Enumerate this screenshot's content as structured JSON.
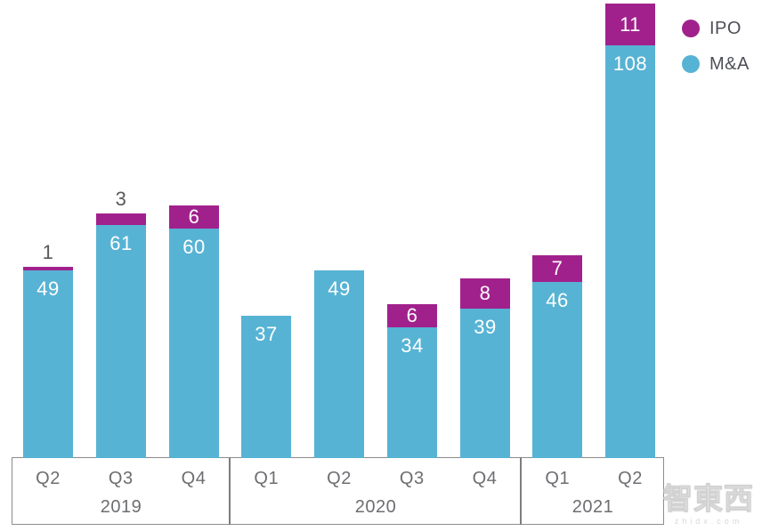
{
  "chart_data": {
    "type": "bar",
    "stacked": true,
    "grid": false,
    "legend_position": "top-right",
    "ylim": [
      0,
      119
    ],
    "quarters": [
      "Q2",
      "Q3",
      "Q4",
      "Q1",
      "Q2",
      "Q3",
      "Q4",
      "Q1",
      "Q2"
    ],
    "year_groups": [
      {
        "label": "2019",
        "count": 3
      },
      {
        "label": "2020",
        "count": 4
      },
      {
        "label": "2021",
        "count": 2
      }
    ],
    "series": [
      {
        "name": "M&A",
        "color": "#57B3D4",
        "values": [
          49,
          61,
          60,
          37,
          49,
          34,
          39,
          46,
          108
        ]
      },
      {
        "name": "IPO",
        "color": "#A1218C",
        "values": [
          1,
          3,
          6,
          0,
          0,
          6,
          8,
          7,
          11
        ]
      }
    ],
    "ipo_label_position": [
      "above",
      "above",
      "inside",
      "none",
      "none",
      "inside",
      "inside",
      "inside",
      "inside"
    ]
  },
  "legend": {
    "items": [
      {
        "label": "IPO",
        "color": "#A1218C"
      },
      {
        "label": "M&A",
        "color": "#57B3D4"
      }
    ]
  },
  "colors": {
    "bar_label": "#FFFFFF",
    "outside_label": "#58595B",
    "axis_text": "#6D6E71",
    "axis_border": "#8C8C8C"
  },
  "watermark": {
    "logo": "智東西",
    "site": "zhidx.com"
  }
}
